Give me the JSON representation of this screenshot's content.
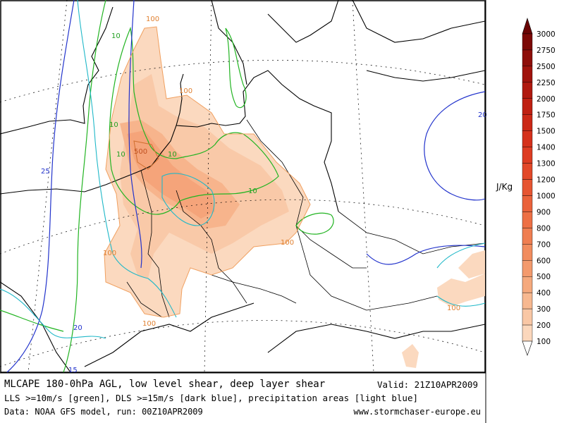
{
  "map": {
    "caption_line1": "MLCAPE 180-0hPa AGL, low level shear, deep layer shear",
    "caption_line2": "LLS >=10m/s [green], DLS >=15m/s [dark blue], precipitation areas [light blue]",
    "caption_line3": "Data: NOAA GFS model, run: 00Z10APR2009",
    "valid": "Valid: 21Z10APR2009",
    "website": "www.stormchaser-europe.eu"
  },
  "contour_labels": {
    "cape": [
      "100",
      "100",
      "500",
      "100",
      "100",
      "100",
      "100"
    ],
    "lls": [
      "10",
      "10",
      "10",
      "10",
      "10"
    ],
    "dls": [
      "25",
      "20",
      "15",
      "20"
    ]
  },
  "legend": {
    "unit": "J/Kg",
    "levels": [
      "100",
      "200",
      "300",
      "400",
      "500",
      "600",
      "700",
      "800",
      "900",
      "1000",
      "1200",
      "1300",
      "1400",
      "1500",
      "1750",
      "2000",
      "2250",
      "2500",
      "2750",
      "3000"
    ],
    "colors": [
      "#fce6d2",
      "#fbd7bc",
      "#f9c7a5",
      "#f7b890",
      "#f5a97d",
      "#f39a6d",
      "#f18c5e",
      "#ef7e51",
      "#ed7045",
      "#ea623b",
      "#e65532",
      "#e24829",
      "#dd3c22",
      "#d5311b",
      "#cb2816",
      "#bf2012",
      "#b0190f",
      "#a0130c",
      "#8e0e09",
      "#7c0906"
    ],
    "top_color": "#6a0404"
  }
}
